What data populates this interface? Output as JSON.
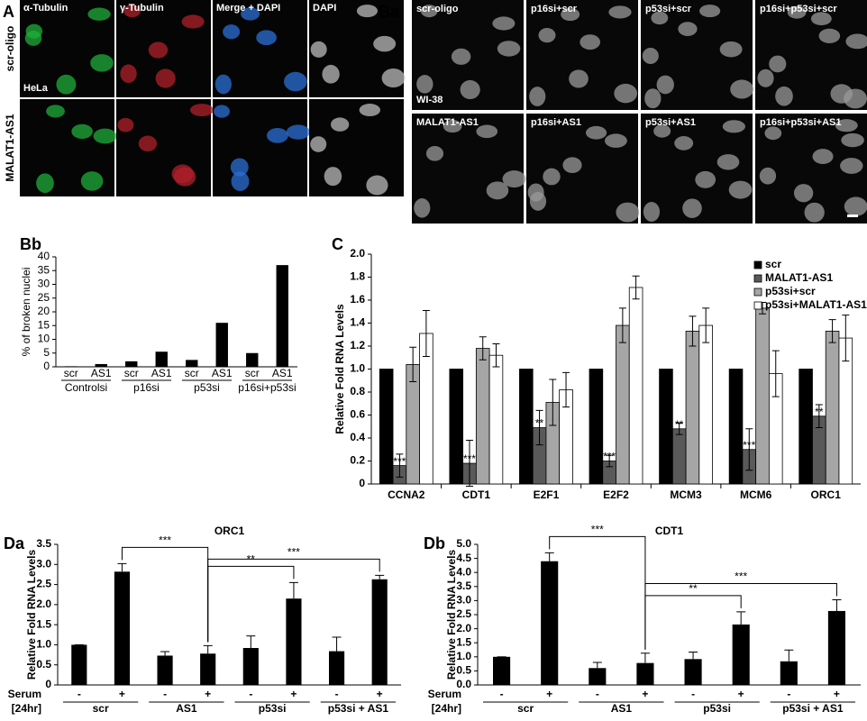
{
  "image_panels": {
    "A": {
      "panel": "A",
      "columns": [
        "α-Tubulin",
        "γ-Tubulin",
        "Merge + DAPI",
        "DAPI"
      ],
      "rows": [
        "scr-oligo",
        "MALAT1-AS1"
      ],
      "cell_line": "HeLa"
    },
    "Ba": {
      "panel": "Ba",
      "cells": [
        [
          "scr-oligo",
          "p16si+scr",
          "p53si+scr",
          "p16si+p53si+scr"
        ],
        [
          "MALAT1-AS1",
          "p16si+AS1",
          "p53si+AS1",
          "p16si+p53si+AS1"
        ]
      ],
      "cell_line": "WI-38"
    }
  },
  "chart_data": [
    {
      "type": "bar",
      "panel": "Bb",
      "y_label": "% of broken nuclei",
      "categories": [
        "scr",
        "AS1",
        "scr",
        "AS1",
        "scr",
        "AS1",
        "scr",
        "AS1"
      ],
      "groups": [
        "Controlsi",
        "p16si",
        "p53si",
        "p16si+p53si"
      ],
      "values": [
        0.2,
        1,
        2,
        5.5,
        2.5,
        16,
        5,
        37
      ],
      "color": "#000000",
      "ylim": [
        0,
        40
      ],
      "yticks": [
        0,
        5,
        10,
        15,
        20,
        25,
        30,
        35,
        40
      ]
    },
    {
      "type": "bar",
      "panel": "C",
      "y_label": "Relative Fold RNA Levels",
      "categories": [
        "CCNA2",
        "CDT1",
        "E2F1",
        "E2F2",
        "MCM3",
        "MCM6",
        "ORC1"
      ],
      "series": [
        {
          "name": "scr",
          "color": "#000000",
          "values": [
            1,
            1,
            1,
            1,
            1,
            1,
            1
          ]
        },
        {
          "name": "MALAT1-AS1",
          "color": "#595959",
          "values": [
            0.16,
            0.18,
            0.49,
            0.2,
            0.48,
            0.3,
            0.59
          ],
          "errors": [
            0.1,
            0.2,
            0.15,
            0.05,
            0.05,
            0.18,
            0.1
          ],
          "significance": [
            "***",
            "***",
            "**",
            "***",
            "**",
            "***",
            "**"
          ]
        },
        {
          "name": "p53si+scr",
          "color": "#a6a6a6",
          "values": [
            1.04,
            1.18,
            0.71,
            1.38,
            1.33,
            1.53,
            1.33
          ],
          "errors": [
            0.15,
            0.1,
            0.2,
            0.15,
            0.13,
            0.05,
            0.1
          ]
        },
        {
          "name": "p53si+MALAT1-AS1",
          "color": "#ffffff",
          "values": [
            1.31,
            1.12,
            0.82,
            1.71,
            1.38,
            0.96,
            1.27
          ],
          "errors": [
            0.2,
            0.1,
            0.15,
            0.1,
            0.15,
            0.2,
            0.2
          ]
        }
      ],
      "legend": "top-right",
      "ylim": [
        0,
        2
      ],
      "yticks": [
        0,
        0.2,
        0.4,
        0.6,
        0.8,
        {
          "value": 1,
          "label": "1.0"
        },
        1.2,
        1.4,
        1.6,
        1.8,
        {
          "value": 2,
          "label": "2.0"
        }
      ]
    },
    {
      "type": "bar",
      "panel": "Da",
      "title": "ORC1",
      "y_label": "Relative Fold RNA Levels",
      "row_labels": [
        "Serum",
        "[24hr]"
      ],
      "categories": [
        "-",
        "+",
        "-",
        "+",
        "-",
        "+",
        "-",
        "+"
      ],
      "groups": [
        "scr",
        "AS1",
        "p53si",
        "p53si + AS1"
      ],
      "values": [
        1,
        2.82,
        0.73,
        0.78,
        0.92,
        2.15,
        0.84,
        2.63
      ],
      "errors": [
        0,
        0.2,
        0.1,
        0.2,
        0.3,
        0.4,
        0.35,
        0.1
      ],
      "significance": [
        "***",
        "**",
        "***"
      ],
      "color": "#000000",
      "ylim": [
        0,
        3.5
      ],
      "yticks": [
        0,
        0.5,
        {
          "value": 1,
          "label": "1.0"
        },
        1.5,
        {
          "value": 2,
          "label": "2.0"
        },
        2.5,
        {
          "value": 3,
          "label": "3.0"
        },
        3.5
      ]
    },
    {
      "type": "bar",
      "panel": "Db",
      "title": "CDT1",
      "y_label": "Relative Fold RNA Levels",
      "row_labels": [
        "Serum",
        "[24hr]"
      ],
      "categories": [
        "-",
        "+",
        "-",
        "+",
        "-",
        "+",
        "-",
        "+"
      ],
      "groups": [
        "scr",
        "AS1",
        "p53si",
        "p53si + AS1"
      ],
      "values": [
        1,
        4.4,
        0.6,
        0.78,
        0.92,
        2.15,
        0.84,
        2.63
      ],
      "errors": [
        0,
        0.3,
        0.2,
        0.35,
        0.25,
        0.45,
        0.4,
        0.4
      ],
      "significance": [
        "***",
        "**",
        "***"
      ],
      "color": "#000000",
      "ylim": [
        0,
        5
      ],
      "yticks": [
        {
          "value": 0,
          "label": "0.0"
        },
        0.5,
        {
          "value": 1,
          "label": "1.0"
        },
        1.5,
        {
          "value": 2,
          "label": "2.0"
        },
        2.5,
        {
          "value": 3,
          "label": "3.0"
        },
        3.5,
        {
          "value": 4,
          "label": "4.0"
        },
        4.5,
        {
          "value": 5,
          "label": "5.0"
        }
      ]
    }
  ]
}
